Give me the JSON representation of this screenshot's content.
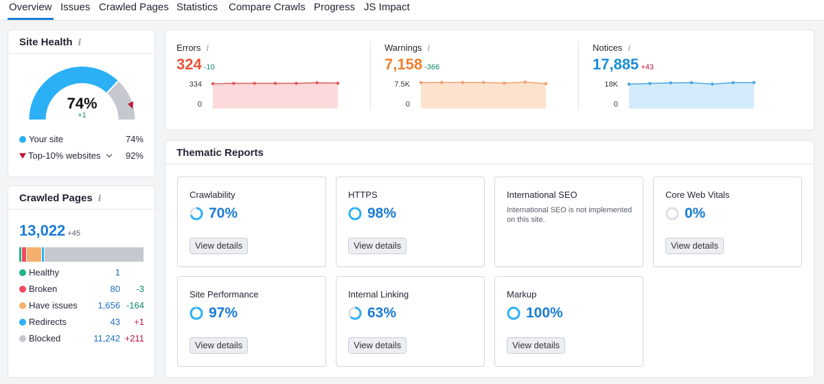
{
  "tabs": [
    "Overview",
    "Issues",
    "Crawled Pages",
    "Statistics",
    "Compare Crawls",
    "Progress",
    "JS Impact"
  ],
  "site_health": {
    "title": "Site Health",
    "info_icon": "i",
    "percent_label": "74%",
    "percent": 74,
    "top10_percent": 92,
    "change": "+1",
    "legend": [
      {
        "label": "Your site",
        "value": "74%",
        "color": "#2bb0f5",
        "icon": "circle-dot"
      },
      {
        "label": "Top-10% websites",
        "value": "92%",
        "color": "#c0163c",
        "icon": "triangle-marker"
      }
    ],
    "colors": {
      "your_site": "#2bb0f5",
      "gap": "#c5c8cf",
      "marker": "#c0163c"
    }
  },
  "crawled_pages": {
    "title": "Crawled Pages",
    "info_icon": "i",
    "total": "13,022",
    "total_change": "+45",
    "rows": [
      {
        "label": "Healthy",
        "count": "1",
        "change": "",
        "color": "#20b38a",
        "count_num": 1
      },
      {
        "label": "Broken",
        "count": "80",
        "change": "-3",
        "color": "#ef4b61",
        "count_num": 80
      },
      {
        "label": "Have issues",
        "count": "1,656",
        "change": "-164",
        "color": "#f6b06e",
        "count_num": 1656
      },
      {
        "label": "Redirects",
        "count": "43",
        "change": "+1",
        "color": "#2bb0f5",
        "count_num": 43
      },
      {
        "label": "Blocked",
        "count": "11,242",
        "change": "+211",
        "color": "#c5c8cf",
        "count_num": 11242
      }
    ],
    "change_colors": {
      "negative": "#0a8a6a",
      "positive": "#c0163c"
    }
  },
  "metrics": [
    {
      "key": "errors",
      "label": "Errors",
      "info_icon": "i",
      "value": "324",
      "change": "-10",
      "color": "#e8513a",
      "change_color": "#0a8a6a",
      "fill": "#fcdadb",
      "line": "#e05b5b",
      "y_top": "334",
      "y_bottom": "0",
      "ymax": 334,
      "series": [
        318,
        322,
        322,
        322,
        322,
        330,
        324
      ]
    },
    {
      "key": "warnings",
      "label": "Warnings",
      "info_icon": "i",
      "value": "7,158",
      "change": "-366",
      "color": "#f07e2b",
      "change_color": "#0a8a6a",
      "fill": "#fde3cd",
      "line": "#f0a070",
      "y_top": "7.5K",
      "y_bottom": "0",
      "ymax": 7500,
      "series": [
        7450,
        7480,
        7480,
        7480,
        7300,
        7600,
        7158
      ]
    },
    {
      "key": "notices",
      "label": "Notices",
      "info_icon": "i",
      "value": "17,885",
      "change": "+43",
      "color": "#1a8ed6",
      "change_color": "#c0163c",
      "fill": "#d3ebfb",
      "line": "#4aa8e0",
      "y_top": "18K",
      "y_bottom": "0",
      "ymax": 18000,
      "series": [
        16800,
        17300,
        17700,
        17800,
        16900,
        17850,
        17885
      ]
    }
  ],
  "thematic": {
    "title": "Thematic Reports",
    "view_details": "View details",
    "ring_color": "#2bb0f5",
    "ring_track": "#dcdfe4",
    "reports": [
      {
        "name": "Crawlability",
        "pct": "70%",
        "value": 70
      },
      {
        "name": "HTTPS",
        "pct": "98%",
        "value": 98
      },
      {
        "name": "International SEO",
        "note": "International SEO is not implemented on this site."
      },
      {
        "name": "Core Web Vitals",
        "pct": "0%",
        "value": 0
      },
      {
        "name": "Site Performance",
        "pct": "97%",
        "value": 97
      },
      {
        "name": "Internal Linking",
        "pct": "63%",
        "value": 63
      },
      {
        "name": "Markup",
        "pct": "100%",
        "value": 100
      }
    ]
  }
}
